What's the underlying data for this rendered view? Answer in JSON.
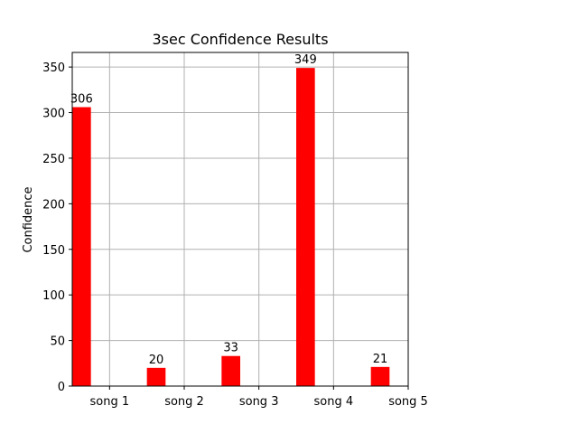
{
  "chart_data": {
    "type": "bar",
    "title": "3sec Confidence Results",
    "xlabel": "",
    "ylabel": "Confidence",
    "categories": [
      "song 1",
      "song 2",
      "song 3",
      "song 4",
      "song 5"
    ],
    "values": [
      306,
      20,
      33,
      349,
      21
    ],
    "data_labels": [
      "306",
      "20",
      "33",
      "349",
      "21"
    ],
    "yticks": [
      0,
      50,
      100,
      150,
      200,
      250,
      300,
      350
    ],
    "ylim": [
      0,
      366
    ],
    "xlim": [
      -0.5,
      4.0
    ],
    "bar_color": "#ff0000",
    "grid": true,
    "legend": null
  }
}
